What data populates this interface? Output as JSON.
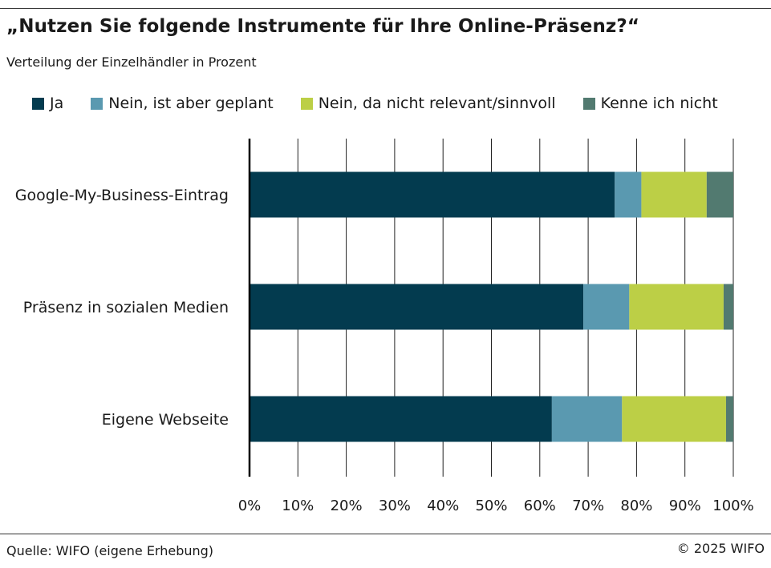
{
  "header": {
    "title": "„Nutzen Sie folgende Instrumente für Ihre Online-Präsenz?“",
    "subtitle": "Verteilung der Einzelhändler in Prozent"
  },
  "legend": [
    {
      "label": "Ja",
      "color": "#033b4f"
    },
    {
      "label": "Nein, ist aber geplant",
      "color": "#5a99b0"
    },
    {
      "label": "Nein, da nicht relevant/sinnvoll",
      "color": "#bccf46"
    },
    {
      "label": "Kenne ich nicht",
      "color": "#527a70"
    }
  ],
  "chart_data": {
    "type": "bar",
    "orientation": "horizontal",
    "stacked": true,
    "categories": [
      "Google-My-Business-Eintrag",
      "Präsenz in sozialen Medien",
      "Eigene Webseite"
    ],
    "series": [
      {
        "name": "Ja",
        "values": [
          75.5,
          69,
          62.5
        ]
      },
      {
        "name": "Nein, ist aber geplant",
        "values": [
          5.5,
          9.5,
          14.5
        ]
      },
      {
        "name": "Nein, da nicht relevant/sinnvoll",
        "values": [
          13.5,
          19.5,
          21.5
        ]
      },
      {
        "name": "Kenne ich nicht",
        "values": [
          5.5,
          2,
          1.5
        ]
      }
    ],
    "xlim": [
      0,
      100
    ],
    "xticks": [
      "0%",
      "10%",
      "20%",
      "30%",
      "40%",
      "50%",
      "60%",
      "70%",
      "80%",
      "90%",
      "100%"
    ],
    "grid": "vertical"
  },
  "footer": {
    "source": "Quelle: WIFO (eigene Erhebung)",
    "copyright": "© 2025 WIFO"
  }
}
